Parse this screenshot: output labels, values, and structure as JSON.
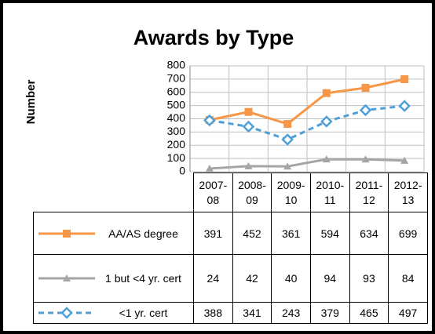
{
  "chart_data": {
    "type": "line",
    "title": "Awards by Type",
    "y_label": "Number",
    "categories": [
      "2007-08",
      "2008-09",
      "2009-10",
      "2010-11",
      "2011-12",
      "2012-13"
    ],
    "series": [
      {
        "name": "AA/AS degree",
        "color": "#f79646",
        "marker": "square",
        "dash": false,
        "values": [
          391,
          452,
          361,
          594,
          634,
          699
        ]
      },
      {
        "name": "1 but <4 yr. cert",
        "color": "#a5a5a5",
        "marker": "triangle",
        "dash": false,
        "values": [
          24,
          42,
          40,
          94,
          93,
          84
        ]
      },
      {
        "name": "<1 yr. cert",
        "color": "#4f9fd8",
        "marker": "diamond",
        "dash": true,
        "values": [
          388,
          341,
          243,
          379,
          465,
          497
        ]
      }
    ],
    "ylim": [
      0,
      800
    ],
    "yticks": [
      0,
      100,
      200,
      300,
      400,
      500,
      600,
      700,
      800
    ],
    "grid": true,
    "data_table": true
  }
}
